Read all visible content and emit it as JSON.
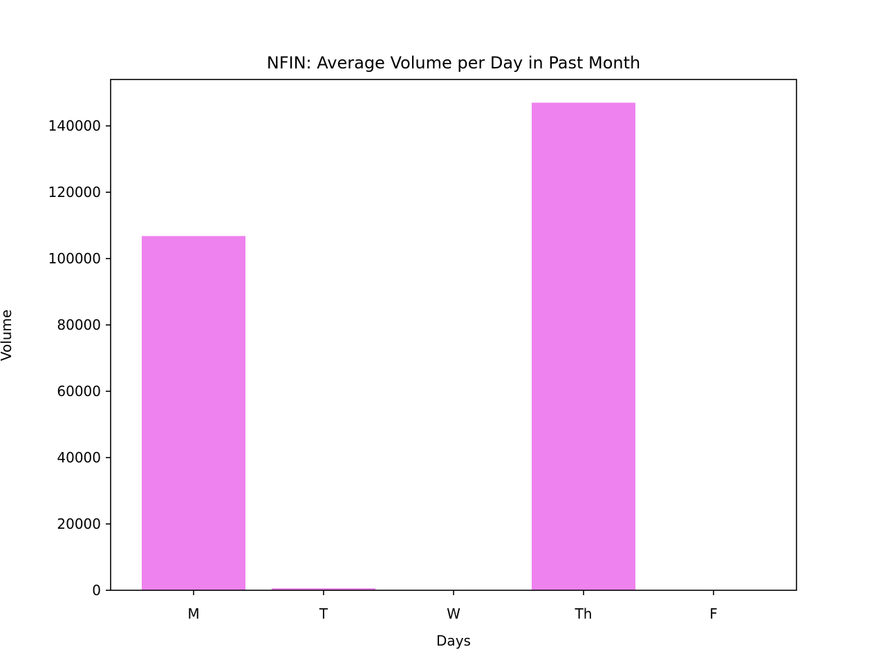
{
  "chart_data": {
    "type": "bar",
    "title": "NFIN: Average Volume per Day in Past Month",
    "xlabel": "Days",
    "ylabel": "Volume",
    "categories": [
      "M",
      "T",
      "W",
      "Th",
      "F"
    ],
    "values": [
      106800,
      600,
      0,
      147000,
      0
    ],
    "ylim": [
      0,
      154000
    ],
    "yticks": [
      0,
      20000,
      40000,
      60000,
      80000,
      100000,
      120000,
      140000
    ],
    "ytick_labels": [
      "0",
      "20000",
      "40000",
      "60000",
      "80000",
      "100000",
      "120000",
      "140000"
    ],
    "bar_color": "#ee82ee",
    "grid": false,
    "legend": "none"
  }
}
